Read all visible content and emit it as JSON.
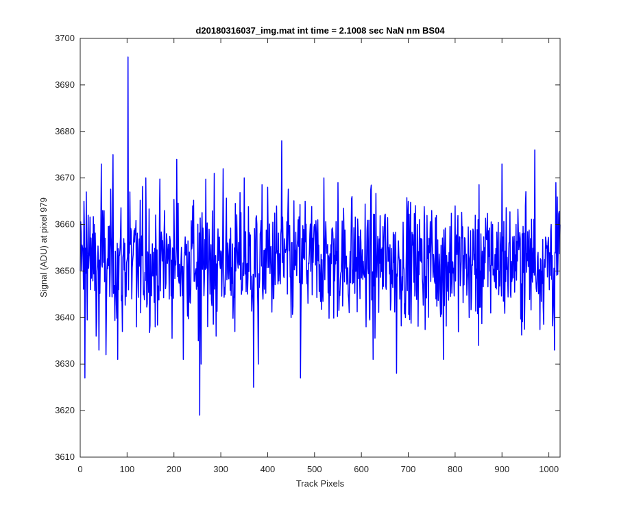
{
  "chart_data": {
    "type": "line",
    "title": "d20180316037_img.mat int time = 2.1008 sec  NaN nm BS04",
    "xlabel": "Track Pixels",
    "ylabel": "Signal (ADU) at pixel 979",
    "xlim": [
      0,
      1024
    ],
    "ylim": [
      3610,
      3700
    ],
    "xticks": [
      0,
      100,
      200,
      300,
      400,
      500,
      600,
      700,
      800,
      900,
      1000
    ],
    "yticks": [
      3610,
      3620,
      3630,
      3640,
      3650,
      3660,
      3670,
      3680,
      3690,
      3700
    ],
    "grid": false,
    "legend": "none",
    "series": [
      {
        "color": "#0000ff",
        "mean": 3652,
        "spread": 6.5,
        "points": [
          [
            0,
            3650
          ],
          [
            5,
            3655
          ],
          [
            8,
            3665
          ],
          [
            10,
            3627
          ],
          [
            13,
            3667
          ],
          [
            17,
            3662
          ],
          [
            22,
            3646
          ],
          [
            30,
            3660
          ],
          [
            34,
            3636
          ],
          [
            40,
            3633
          ],
          [
            45,
            3673
          ],
          [
            55,
            3632
          ],
          [
            70,
            3675
          ],
          [
            80,
            3631
          ],
          [
            90,
            3637
          ],
          [
            102,
            3696
          ],
          [
            106,
            3667
          ],
          [
            120,
            3638
          ],
          [
            140,
            3670
          ],
          [
            160,
            3638
          ],
          [
            180,
            3663
          ],
          [
            206,
            3674
          ],
          [
            220,
            3631
          ],
          [
            240,
            3664
          ],
          [
            252,
            3635
          ],
          [
            255,
            3619
          ],
          [
            258,
            3630
          ],
          [
            275,
            3659
          ],
          [
            286,
            3671
          ],
          [
            290,
            3636
          ],
          [
            305,
            3672
          ],
          [
            330,
            3637
          ],
          [
            350,
            3670
          ],
          [
            370,
            3625
          ],
          [
            380,
            3630
          ],
          [
            400,
            3668
          ],
          [
            430,
            3678
          ],
          [
            450,
            3640
          ],
          [
            470,
            3627
          ],
          [
            480,
            3665
          ],
          [
            500,
            3660
          ],
          [
            520,
            3670
          ],
          [
            550,
            3669
          ],
          [
            580,
            3666
          ],
          [
            610,
            3638
          ],
          [
            625,
            3631
          ],
          [
            650,
            3662
          ],
          [
            675,
            3628
          ],
          [
            700,
            3665
          ],
          [
            720,
            3660
          ],
          [
            735,
            3660
          ],
          [
            750,
            3663
          ],
          [
            775,
            3631
          ],
          [
            800,
            3664
          ],
          [
            830,
            3640
          ],
          [
            850,
            3634
          ],
          [
            880,
            3660
          ],
          [
            900,
            3673
          ],
          [
            930,
            3660
          ],
          [
            950,
            3664
          ],
          [
            970,
            3676
          ],
          [
            985,
            3650
          ],
          [
            1005,
            3660
          ],
          [
            1012,
            3633
          ],
          [
            1015,
            3669
          ],
          [
            1020,
            3655
          ],
          [
            1024,
            3660
          ]
        ]
      }
    ]
  }
}
